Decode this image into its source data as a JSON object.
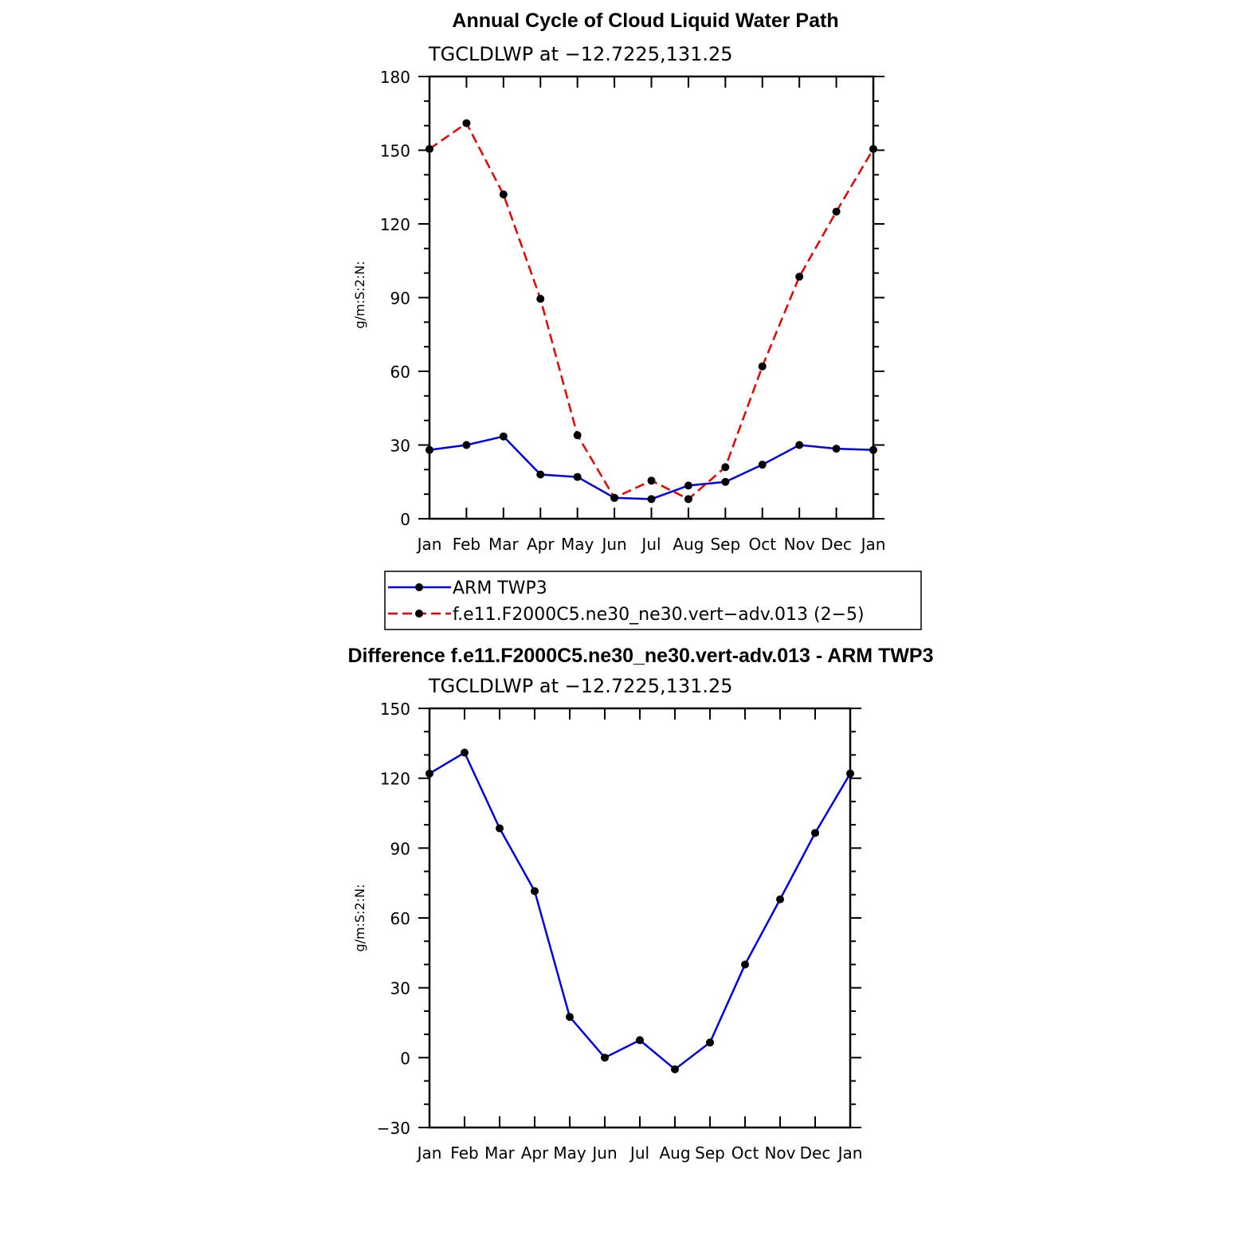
{
  "chart_data": [
    {
      "type": "line",
      "title": "Annual Cycle of Cloud Liquid Water Path",
      "subtitle": "TGCLDLWP  at  −12.7225,131.25",
      "ylabel": "g/m:S:2:N:",
      "xlabel": "",
      "categories": [
        "Jan",
        "Feb",
        "Mar",
        "Apr",
        "May",
        "Jun",
        "Jul",
        "Aug",
        "Sep",
        "Oct",
        "Nov",
        "Dec",
        "Jan"
      ],
      "ylim": [
        0,
        180
      ],
      "yticks": [
        0,
        30,
        60,
        90,
        120,
        150,
        180
      ],
      "yticklabels": [
        "0",
        "30",
        "60",
        "90",
        "120",
        "150",
        "180"
      ],
      "series": [
        {
          "name": "ARM TWP3",
          "color": "#0000ee",
          "dash": "solid",
          "values": [
            28,
            30,
            33.5,
            18,
            17,
            8.5,
            8,
            13.5,
            15,
            22,
            30,
            28.5,
            28
          ]
        },
        {
          "name": "f.e11.F2000C5.ne30_ne30.vert−adv.013 (2−5)",
          "color": "#ee0000",
          "dash": "dashed",
          "values": [
            150.5,
            161,
            132,
            89.5,
            34,
            8.5,
            15.5,
            8,
            21,
            62,
            98.5,
            125,
            150.5
          ]
        }
      ]
    },
    {
      "type": "line",
      "title": "Difference f.e11.F2000C5.ne30_ne30.vert-adv.013 - ARM TWP3",
      "subtitle": "TGCLDLWP  at  −12.7225,131.25",
      "ylabel": "g/m:S:2:N:",
      "xlabel": "",
      "categories": [
        "Jan",
        "Feb",
        "Mar",
        "Apr",
        "May",
        "Jun",
        "Jul",
        "Aug",
        "Sep",
        "Oct",
        "Nov",
        "Dec",
        "Jan"
      ],
      "ylim": [
        -30,
        150
      ],
      "yticks": [
        -30,
        0,
        30,
        60,
        90,
        120,
        150
      ],
      "yticklabels": [
        "−30",
        "0",
        "30",
        "60",
        "90",
        "120",
        "150"
      ],
      "series": [
        {
          "color": "#0000ee",
          "dash": "solid",
          "values": [
            122,
            131,
            98.5,
            71.5,
            17.5,
            0,
            7.5,
            -5,
            6.5,
            40,
            68,
            96.5,
            122
          ]
        }
      ]
    }
  ]
}
